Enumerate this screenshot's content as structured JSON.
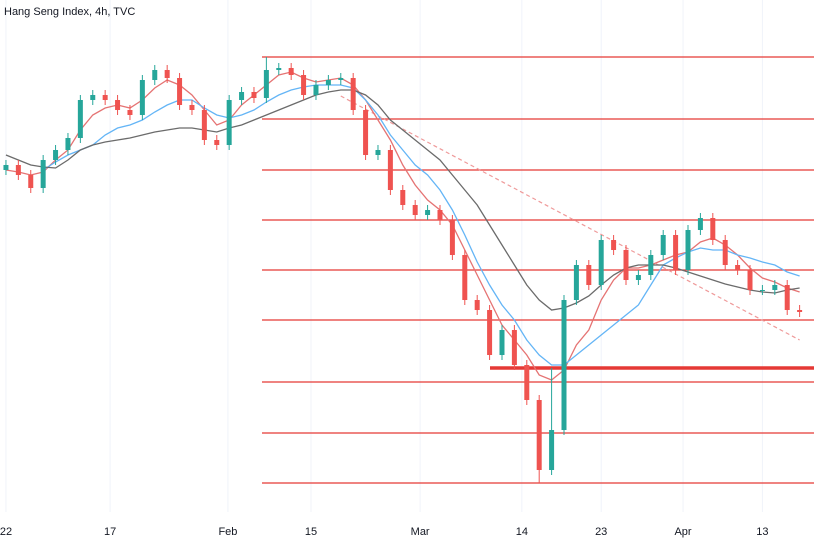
{
  "chart_data": {
    "type": "candlestick",
    "title": "Hang Seng Index, 4h, TVC",
    "up_color": "#26a69a",
    "down_color": "#ef5350",
    "open": [
      23280,
      23360,
      23200,
      22992,
      23440,
      23600,
      23792,
      24400,
      24480,
      24400,
      24240,
      24160,
      24720,
      24880,
      24752,
      24320,
      24240,
      23760,
      23680,
      24400,
      24528,
      24432,
      24880,
      24912,
      24800,
      24480,
      24640,
      24720,
      24752,
      24240,
      23520,
      23600,
      22960,
      22720,
      22560,
      22640,
      22480,
      21920,
      21200,
      21040,
      20320,
      20720,
      20160,
      19600,
      18480,
      19120,
      21200,
      21760,
      21440,
      22160,
      22000,
      21520,
      21600,
      21920,
      22240,
      21680,
      22320,
      22512,
      22160,
      21760,
      21680,
      21360,
      21360,
      21440,
      21040
    ],
    "high": [
      23440,
      23440,
      23280,
      23520,
      23680,
      23872,
      24480,
      24560,
      24560,
      24480,
      24320,
      24800,
      24960,
      24960,
      24832,
      24400,
      24320,
      23840,
      24480,
      24608,
      24608,
      25088,
      24992,
      24992,
      24880,
      24720,
      24800,
      24832,
      24832,
      24320,
      23680,
      23680,
      23040,
      22800,
      22720,
      22720,
      22560,
      22000,
      21280,
      21120,
      20800,
      20800,
      20240,
      19680,
      20112,
      21280,
      21840,
      21840,
      22240,
      22240,
      22080,
      21680,
      22000,
      22320,
      22320,
      22400,
      22592,
      22592,
      22240,
      21840,
      21760,
      21440,
      21520,
      21520,
      21120
    ],
    "low": [
      23200,
      23120,
      22912,
      22912,
      23360,
      23520,
      23712,
      24320,
      24320,
      24160,
      24080,
      24080,
      24640,
      24672,
      24240,
      24160,
      23680,
      23600,
      23600,
      24320,
      24352,
      24352,
      24800,
      24720,
      24400,
      24400,
      24560,
      24640,
      24160,
      23440,
      23440,
      22880,
      22640,
      22480,
      22480,
      22400,
      21840,
      21120,
      20960,
      20240,
      20240,
      20080,
      19520,
      18272,
      18400,
      19040,
      21120,
      21360,
      21360,
      21920,
      21440,
      21440,
      21520,
      21840,
      21600,
      21600,
      22240,
      22080,
      21680,
      21600,
      21280,
      21280,
      21280,
      20960,
      20928
    ],
    "close": [
      23360,
      23200,
      22992,
      23440,
      23600,
      23792,
      24400,
      24480,
      24400,
      24240,
      24160,
      24720,
      24880,
      24752,
      24320,
      24240,
      23760,
      23680,
      24400,
      24528,
      24432,
      24880,
      24912,
      24800,
      24480,
      24640,
      24720,
      24752,
      24240,
      23520,
      23600,
      22960,
      22720,
      22560,
      22640,
      22480,
      21920,
      21200,
      21040,
      20320,
      20720,
      20160,
      19600,
      18480,
      19120,
      21200,
      21760,
      21440,
      22160,
      22000,
      21520,
      21600,
      21920,
      22240,
      21680,
      22320,
      22512,
      22160,
      21760,
      21680,
      21360,
      21360,
      21440,
      21040,
      21008
    ],
    "series": [
      {
        "color": "#e57373",
        "values": [
          23280,
          23248,
          23200,
          23248,
          23440,
          23600,
          23920,
          24160,
          24272,
          24320,
          24272,
          24400,
          24592,
          24720,
          24640,
          24480,
          24240,
          24000,
          24080,
          24320,
          24480,
          24640,
          24800,
          24848,
          24752,
          24688,
          24720,
          24752,
          24640,
          24400,
          24080,
          23760,
          23360,
          23040,
          22800,
          22640,
          22400,
          22000,
          21600,
          21200,
          20800,
          20560,
          20320,
          20000,
          19920,
          20080,
          20480,
          20720,
          21200,
          21520,
          21712,
          21712,
          21760,
          21840,
          21920,
          21968,
          22128,
          22192,
          22080,
          21920,
          21712,
          21552,
          21488,
          21392,
          21328
        ]
      },
      {
        "color": "#64b5f6",
        "values": [
          null,
          null,
          null,
          23280,
          23408,
          23520,
          23600,
          23680,
          23840,
          23952,
          24000,
          24080,
          24208,
          24320,
          24400,
          24400,
          24272,
          24160,
          24112,
          24160,
          24240,
          24368,
          24480,
          24560,
          24608,
          24640,
          24640,
          24640,
          24592,
          24400,
          24160,
          23840,
          23600,
          23360,
          23200,
          22960,
          22640,
          22240,
          21808,
          21440,
          21120,
          20880,
          20560,
          20320,
          20160,
          20160,
          20320,
          20480,
          20640,
          20800,
          20960,
          21120,
          21440,
          21760,
          21872,
          21968,
          22032,
          22000,
          22000,
          21920,
          21872,
          21808,
          21760,
          21648,
          21584
        ]
      },
      {
        "color": "#6b6b6b",
        "values": [
          23520,
          23440,
          23360,
          23328,
          23312,
          23440,
          23600,
          23680,
          23728,
          23760,
          23792,
          23840,
          23888,
          23920,
          23952,
          23952,
          23920,
          23888,
          23952,
          24000,
          24080,
          24160,
          24240,
          24320,
          24400,
          24480,
          24528,
          24560,
          24560,
          24480,
          24320,
          24080,
          23920,
          23760,
          23600,
          23440,
          23200,
          22960,
          22720,
          22400,
          22080,
          21760,
          21440,
          21200,
          21040,
          21072,
          21152,
          21264,
          21440,
          21600,
          21712,
          21760,
          21760,
          21760,
          21712,
          21648,
          21584,
          21520,
          21456,
          21408,
          21360,
          21328,
          21312,
          21360,
          21392
        ]
      }
    ],
    "trendline": {
      "color": "#ef9a9a",
      "x": [
        27,
        64
      ],
      "values": [
        24464,
        20560
      ]
    },
    "levels": [
      25088,
      24096,
      23280,
      22480,
      21680,
      20880,
      19888,
      19072,
      18272
    ],
    "levels_color": "#e53935",
    "key_level": 20112,
    "xlim": [
      -0.48,
      65.16
    ],
    "ylim": [
      17808,
      26000
    ],
    "xticks": [
      {
        "value": 0,
        "label": "22"
      },
      {
        "value": 8.4,
        "label": "17"
      },
      {
        "value": 17.9,
        "label": "Feb"
      },
      {
        "value": 24.6,
        "label": "15"
      },
      {
        "value": 33.4,
        "label": "Mar"
      },
      {
        "value": 41.6,
        "label": "14"
      },
      {
        "value": 48,
        "label": "23"
      },
      {
        "value": 54.6,
        "label": "Apr"
      },
      {
        "value": 61,
        "label": "13"
      }
    ],
    "grid": true
  }
}
